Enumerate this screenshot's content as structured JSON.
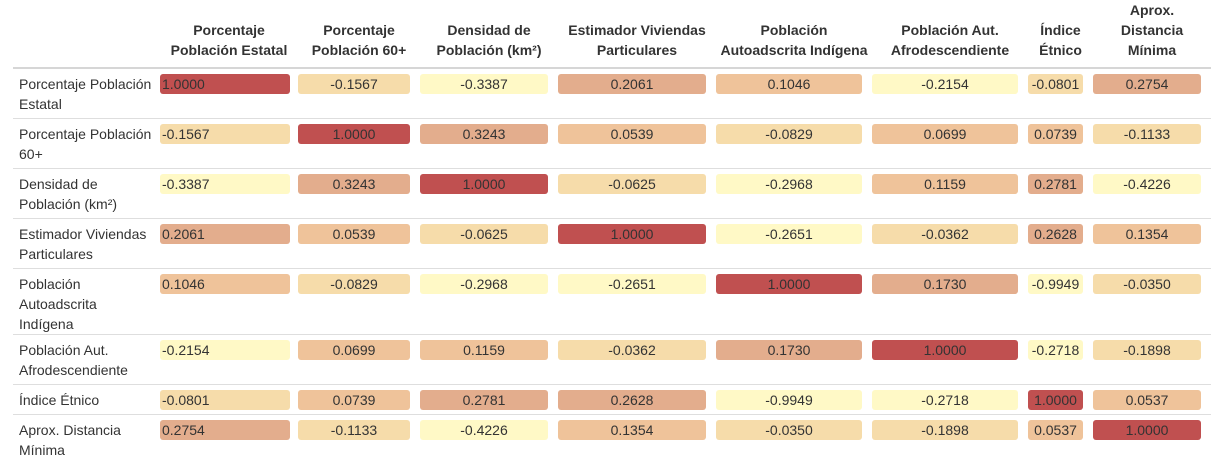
{
  "chart_data": {
    "type": "heatmap",
    "columns": [
      "Porcentaje Población Estatal",
      "Porcentaje Población 60+",
      "Densidad de Población (km²)",
      "Estimador Viviendas Particulares",
      "Población Autoadscrita Indígena",
      "Población Aut. Afrodescendiente",
      "Índice Étnico",
      "Aprox. Distancia Mínima"
    ],
    "rows": [
      "Porcentaje Población Estatal",
      "Porcentaje Población 60+",
      "Densidad de Población (km²)",
      "Estimador Viviendas Particulares",
      "Población Autoadscrita Indígena",
      "Población Aut. Afrodescendiente",
      "Índice Étnico",
      "Aprox. Distancia Mínima"
    ],
    "values": [
      [
        "1.0000",
        "-0.1567",
        "-0.3387",
        "0.2061",
        "0.1046",
        "-0.2154",
        "-0.0801",
        "0.2754"
      ],
      [
        "-0.1567",
        "1.0000",
        "0.3243",
        "0.0539",
        "-0.0829",
        "0.0699",
        "0.0739",
        "-0.1133"
      ],
      [
        "-0.3387",
        "0.3243",
        "1.0000",
        "-0.0625",
        "-0.2968",
        "0.1159",
        "0.2781",
        "-0.4226"
      ],
      [
        "0.2061",
        "0.0539",
        "-0.0625",
        "1.0000",
        "-0.2651",
        "-0.0362",
        "0.2628",
        "0.1354"
      ],
      [
        "0.1046",
        "-0.0829",
        "-0.2968",
        "-0.2651",
        "1.0000",
        "0.1730",
        "-0.9949",
        "-0.0350"
      ],
      [
        "-0.2154",
        "0.0699",
        "0.1159",
        "-0.0362",
        "0.1730",
        "1.0000",
        "-0.2718",
        "-0.1898"
      ],
      [
        "-0.0801",
        "0.0739",
        "0.2781",
        "0.2628",
        "-0.9949",
        "-0.2718",
        "1.0000",
        "0.0537"
      ],
      [
        "0.2754",
        "-0.1133",
        "-0.4226",
        "0.1354",
        "-0.0350",
        "-0.1898",
        "0.0537",
        "1.0000"
      ]
    ],
    "color_scale": [
      "#fff9c6",
      "#f6dcaa",
      "#efc39a",
      "#e3ad8d",
      "#c05050"
    ]
  }
}
